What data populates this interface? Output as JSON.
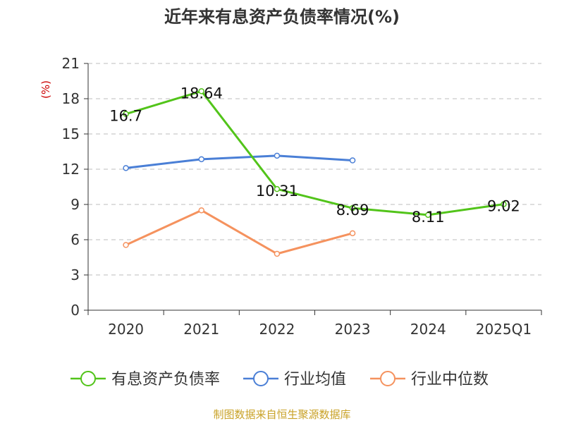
{
  "chart_data": {
    "type": "line",
    "title": "近年来有息资产负债率情况(%)",
    "ylabel": "(%)",
    "categories": [
      "2020",
      "2021",
      "2022",
      "2023",
      "2024",
      "2025Q1"
    ],
    "ylim": [
      0,
      21
    ],
    "yticks": [
      0,
      3,
      6,
      9,
      12,
      15,
      18,
      21
    ],
    "grid": true,
    "legend_position": "bottom",
    "series": [
      {
        "name": "有息资产负债率",
        "color": "#52c41a",
        "values": [
          16.7,
          18.64,
          10.31,
          8.69,
          8.11,
          9.02
        ],
        "labels": [
          "16.7",
          "18.64",
          "10.31",
          "8.69",
          "8.11",
          "9.02"
        ]
      },
      {
        "name": "行业均值",
        "color": "#4a7fd6",
        "values": [
          12.1,
          12.85,
          13.15,
          12.75,
          null,
          null
        ]
      },
      {
        "name": "行业中位数",
        "color": "#f5925e",
        "values": [
          5.55,
          8.5,
          4.8,
          6.55,
          null,
          null
        ]
      }
    ],
    "source": "制图数据来自恒生聚源数据库"
  }
}
